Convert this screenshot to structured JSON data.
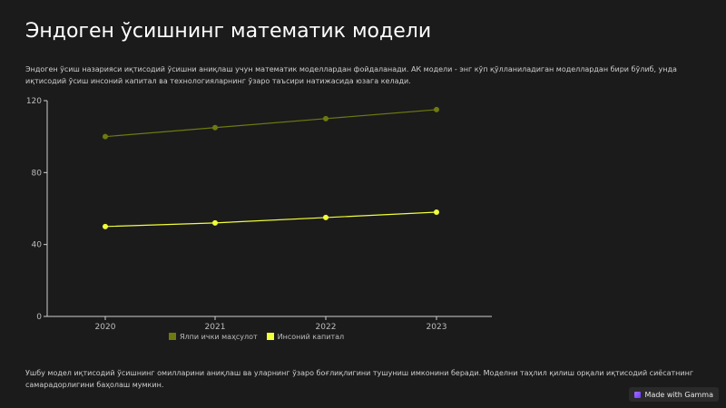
{
  "page": {
    "title": "Эндоген ўсишнинг математик модели",
    "intro": "Эндоген ўсиш назарияси иқтисодий ўсишни аниқлаш учун математик моделлардан фойдаланади. АК модели - энг кўп қўлланиладиган моделлардан бири бўлиб, унда иқтисодий ўсиш инсоний капитал ва технологияларнинг ўзаро таъсири натижасида юзага келади.",
    "footer": "Ушбу модел иқтисодий ўсишнинг омилларини аниқлаш ва уларнинг ўзаро боғлиқлигини тушуниш имконини беради. Моделни таҳлил қилиш орқали иқтисодий сиёсатнинг самарадорлигини баҳолаш мумкин.",
    "badge": "Made with Gamma"
  },
  "colors": {
    "background": "#1b1b1b",
    "series_gdp": "#6e7a10",
    "series_capital": "#f2ff3a",
    "axis": "#cfcfcf"
  },
  "chart_data": {
    "type": "line",
    "x": [
      "2020",
      "2021",
      "2022",
      "2023"
    ],
    "series": [
      {
        "name": "Ялпи ички маҳсулот",
        "values": [
          100,
          105,
          110,
          115
        ]
      },
      {
        "name": "Инсоний капитал",
        "values": [
          50,
          52,
          55,
          58
        ]
      }
    ],
    "yticks": [
      "0",
      "40",
      "80",
      "120"
    ],
    "ylim": [
      0,
      120
    ],
    "grid": false,
    "legend_position": "bottom"
  }
}
